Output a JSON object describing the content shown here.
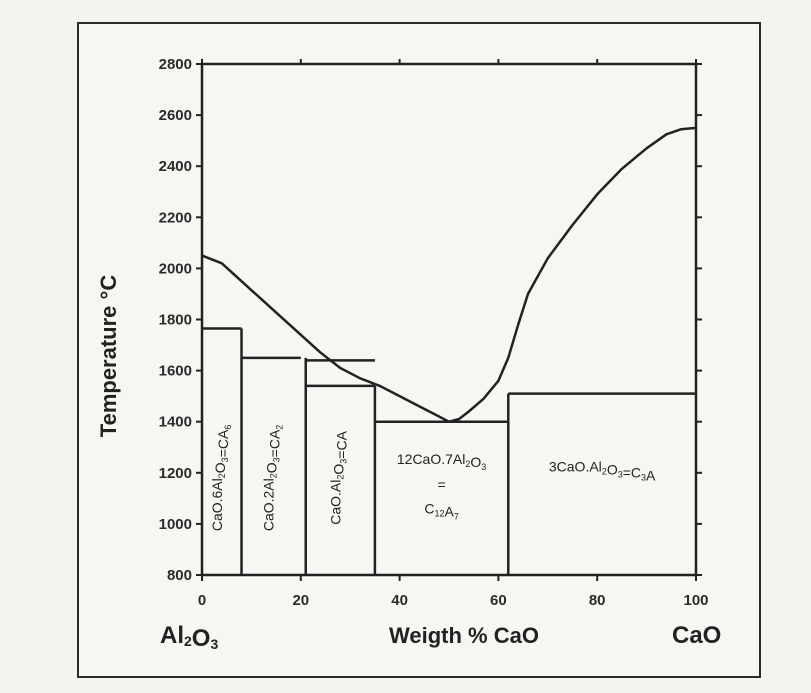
{
  "chart_data": {
    "type": "line",
    "title": "",
    "xlabel": "Weigth % CaO",
    "ylabel": "Temperature °C",
    "xlim": [
      0,
      100
    ],
    "ylim": [
      800,
      2800
    ],
    "x_ticks": [
      "0",
      "20",
      "40",
      "60",
      "80",
      "100"
    ],
    "y_ticks": [
      "800",
      "1000",
      "1200",
      "1400",
      "1600",
      "1800",
      "2000",
      "2200",
      "2400",
      "2600",
      "2800"
    ],
    "grid": false,
    "end_labels": {
      "left": "Al2O3",
      "right": "CaO"
    },
    "series": [
      {
        "name": "",
        "x": [
          0,
          4,
          8,
          12,
          16,
          20,
          24,
          28,
          32,
          36,
          40,
          44,
          47,
          50,
          52,
          54,
          57,
          60,
          62,
          64,
          66,
          70,
          75,
          80,
          85,
          90,
          94,
          97,
          100
        ],
        "y": [
          2050,
          2020,
          1950,
          1880,
          1810,
          1740,
          1670,
          1610,
          1570,
          1540,
          1500,
          1460,
          1430,
          1400,
          1410,
          1440,
          1490,
          1560,
          1650,
          1780,
          1900,
          2040,
          2170,
          2290,
          2390,
          2470,
          2525,
          2545,
          2550
        ]
      }
    ],
    "phase_lines": [
      {
        "x": [
          0,
          8
        ],
        "y": [
          1765,
          1765
        ]
      },
      {
        "x": [
          8,
          8
        ],
        "y": [
          800,
          1765
        ]
      },
      {
        "x": [
          8,
          20
        ],
        "y": [
          1650,
          1650
        ]
      },
      {
        "x": [
          21,
          21
        ],
        "y": [
          800,
          1650
        ]
      },
      {
        "x": [
          21,
          35
        ],
        "y": [
          1640,
          1640
        ]
      },
      {
        "x": [
          21,
          35
        ],
        "y": [
          1540,
          1540
        ]
      },
      {
        "x": [
          35,
          35
        ],
        "y": [
          800,
          1540
        ]
      },
      {
        "x": [
          35,
          62
        ],
        "y": [
          1400,
          1400
        ]
      },
      {
        "x": [
          62,
          62
        ],
        "y": [
          800,
          1510
        ]
      },
      {
        "x": [
          62,
          100
        ],
        "y": [
          1510,
          1510
        ]
      }
    ],
    "phase_labels": [
      {
        "text": "CaO.6Al2O3=CA6",
        "x": 4,
        "y": 1180,
        "rotate": -90
      },
      {
        "text": "CaO.2Al2O3=CA2",
        "x": 14.5,
        "y": 1180,
        "rotate": -90
      },
      {
        "text": "CaO.Al2O3=CA",
        "x": 28,
        "y": 1180,
        "rotate": -90
      },
      {
        "text": "12CaO.7Al2O3",
        "x": 48.5,
        "y": 1235,
        "rotate": 0
      },
      {
        "text": "=",
        "x": 48.5,
        "y": 1135,
        "rotate": 0
      },
      {
        "text": "C12A7",
        "x": 48.5,
        "y": 1040,
        "rotate": 0
      },
      {
        "text": "3CaO.Al2O3=C3A",
        "x": 81,
        "y": 1205,
        "rotate": 0
      }
    ]
  }
}
